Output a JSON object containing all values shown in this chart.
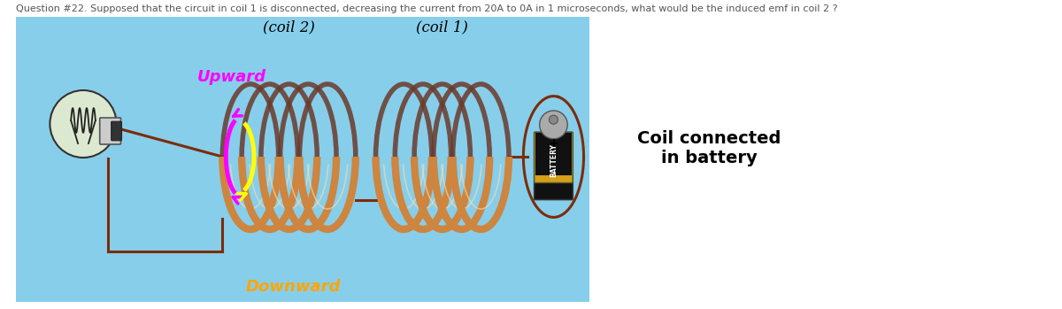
{
  "title": "Question #22. Supposed that the circuit in coil 1 is disconnected, decreasing the current from 20A to 0A in 1 microseconds, what would be the induced emf in coil 2 ?",
  "title_fontsize": 8.0,
  "title_color": "#555555",
  "bg_color": "#87CEEB",
  "fig_bg": "#ffffff",
  "coil2_label": "(coil 2)",
  "coil1_label": "(coil 1)",
  "upward_label": "Upward",
  "downward_label": "Downward",
  "battery_label": "Coil connected\nin battery",
  "upward_color": "#FF00FF",
  "downward_color": "#FFA500",
  "coil_color_light": "#CD853F",
  "coil_color_dark": "#6B3A2A",
  "wire_color": "#7B2D0A",
  "arrow_magenta": "#FF00FF",
  "arrow_yellow": "#FFFF00",
  "battery_gold": "#D4A017",
  "battery_black": "#111111",
  "battery_silver": "#C0C0C0"
}
